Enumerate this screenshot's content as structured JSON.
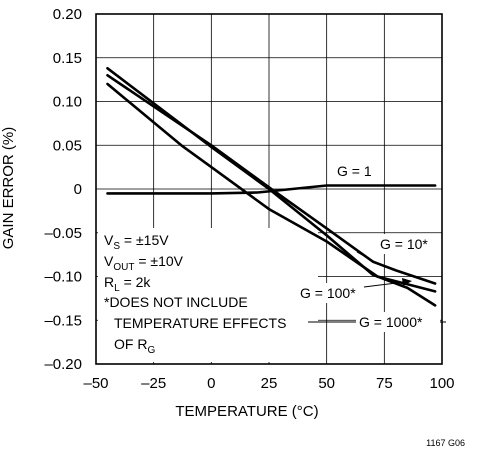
{
  "chart_data": {
    "type": "line",
    "xlabel": "TEMPERATURE (°C)",
    "ylabel": "GAIN ERROR (%)",
    "xlim": [
      -50,
      100
    ],
    "ylim": [
      -0.2,
      0.2
    ],
    "grid": true,
    "x_ticks": [
      "–50",
      "–25",
      "0",
      "25",
      "50",
      "75",
      "100"
    ],
    "y_ticks": [
      "0.20",
      "0.15",
      "0.10",
      "0.05",
      "0",
      "–0.05",
      "–0.10",
      "–0.15",
      "–0.20"
    ],
    "series": [
      {
        "name": "G = 1",
        "points": [
          [
            -45,
            -0.005
          ],
          [
            0,
            -0.005
          ],
          [
            20,
            -0.004
          ],
          [
            35,
            0.0
          ],
          [
            50,
            0.004
          ],
          [
            75,
            0.004
          ],
          [
            97,
            0.004
          ]
        ]
      },
      {
        "name": "G = 10*",
        "points": [
          [
            -45,
            0.13
          ],
          [
            0,
            0.05
          ],
          [
            25,
            0.002
          ],
          [
            50,
            -0.045
          ],
          [
            70,
            -0.083
          ],
          [
            80,
            -0.093
          ],
          [
            97,
            -0.108
          ]
        ]
      },
      {
        "name": "G = 100*",
        "points": [
          [
            -45,
            0.12
          ],
          [
            -13,
            0.05
          ],
          [
            0,
            0.025
          ],
          [
            25,
            -0.023
          ],
          [
            50,
            -0.06
          ],
          [
            72,
            -0.1
          ],
          [
            97,
            -0.117
          ]
        ]
      },
      {
        "name": "G = 1000*",
        "points": [
          [
            -45,
            0.138
          ],
          [
            0,
            0.048
          ],
          [
            25,
            0.0
          ],
          [
            50,
            -0.053
          ],
          [
            70,
            -0.098
          ],
          [
            85,
            -0.113
          ],
          [
            97,
            -0.133
          ]
        ]
      }
    ],
    "annotations": {
      "vs_label": "V",
      "vs_sub": "S",
      "vs_value": " = ±15V",
      "vout_label": "V",
      "vout_sub": "OUT",
      "vout_value": " = ±10V",
      "rl_label": "R",
      "rl_sub": "L",
      "rl_value": " = 2k",
      "note_line1": "*DOES NOT INCLUDE",
      "note_line2": "TEMPERATURE EFFECTS",
      "note_line3": "OF R",
      "note_line3_sub": "G",
      "label_g1": "G = 1",
      "label_g10": "G = 10*",
      "label_g100": "G = 100*",
      "label_g1000": "G = 1000*"
    },
    "figure_id": "1167 G06"
  }
}
